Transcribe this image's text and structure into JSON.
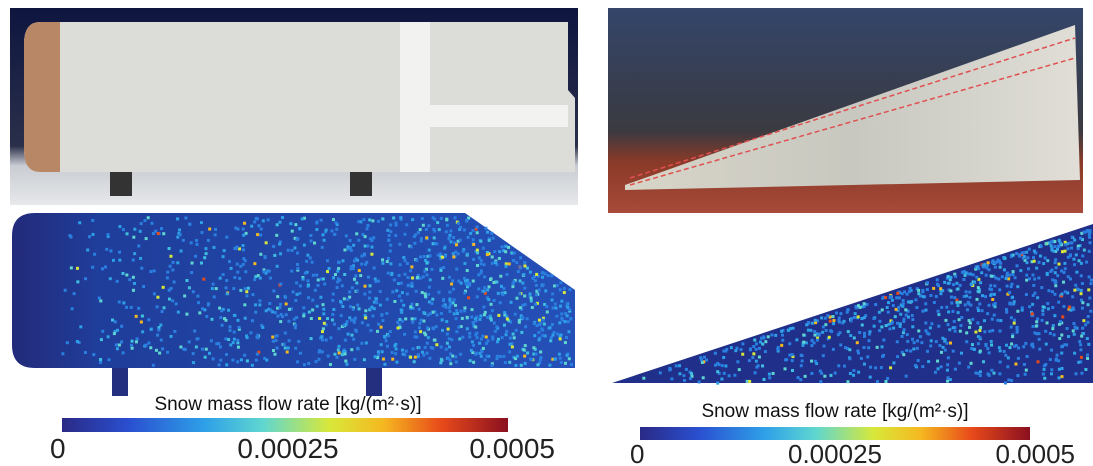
{
  "panels": [
    {
      "colorbar": {
        "title": "Snow mass flow rate [kg/(m²·s)]",
        "ticks": [
          "0",
          "0.00025",
          "0.0005"
        ]
      }
    },
    {
      "colorbar": {
        "title": "Snow mass flow rate [kg/(m²·s)]",
        "ticks": [
          "0",
          "0.00025",
          "0.0005"
        ]
      }
    }
  ]
}
